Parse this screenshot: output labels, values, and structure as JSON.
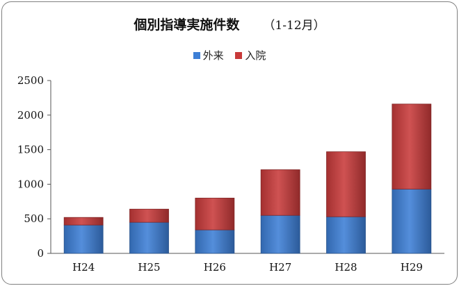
{
  "chart_data": {
    "type": "bar",
    "stacked": true,
    "title": "個別指導実施件数",
    "subtitle": "（1-12月）",
    "categories": [
      "H24",
      "H25",
      "H26",
      "H27",
      "H28",
      "H29"
    ],
    "series": [
      {
        "name": "外来",
        "values": [
          410,
          450,
          340,
          550,
          530,
          930
        ],
        "color": "#3d7fd6"
      },
      {
        "name": "入院",
        "values": [
          110,
          190,
          460,
          660,
          940,
          1230
        ],
        "color": "#c83a3a"
      }
    ],
    "ylim": [
      0,
      2500
    ],
    "yticks": [
      0,
      500,
      1000,
      1500,
      2000,
      2500
    ],
    "grid": false,
    "legend": "top-center"
  }
}
